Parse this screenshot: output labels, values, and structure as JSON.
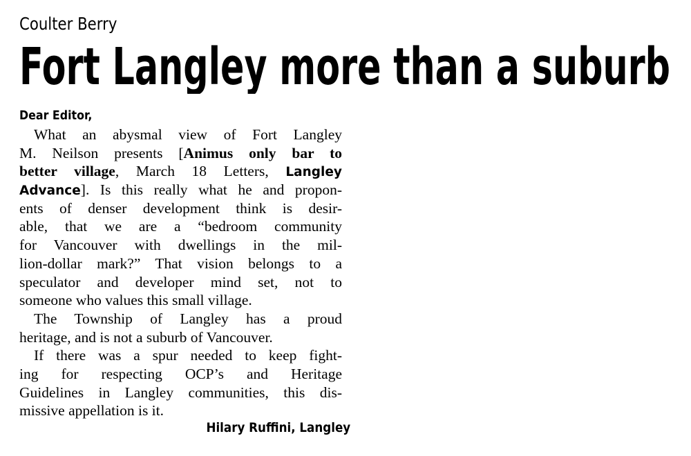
{
  "kicker": "Coulter Berry",
  "headline": "Fort Langley more than a suburb",
  "salutation": "Dear Editor,",
  "paragraphs": [
    {
      "indent": true,
      "lines": [
        [
          {
            "text": "What an abysmal view of Fort Langley"
          }
        ],
        [
          {
            "text": "M. Neilson presents ["
          },
          {
            "text": "Animus only bar to",
            "style": "bold"
          }
        ],
        [
          {
            "text": "better village",
            "style": "bold"
          },
          {
            "text": ", March 18 Letters, "
          },
          {
            "text": "Langley",
            "style": "sans-bold"
          }
        ],
        [
          {
            "text": "Advance",
            "style": "sans-bold"
          },
          {
            "text": "]. Is this really what he and propon-"
          }
        ],
        [
          {
            "text": "ents of denser development think is desir-"
          }
        ],
        [
          {
            "text": "able, that we are a “bedroom community"
          }
        ],
        [
          {
            "text": "for Vancouver with dwellings in the mil-"
          }
        ],
        [
          {
            "text": "lion-dollar mark?” That vision belongs to a"
          }
        ],
        [
          {
            "text": "speculator and developer mind set, not to"
          }
        ],
        [
          {
            "text": "someone who values this small village."
          }
        ]
      ]
    },
    {
      "indent": true,
      "lines": [
        [
          {
            "text": "The Township of Langley has a proud"
          }
        ],
        [
          {
            "text": "heritage, and is not a suburb of Vancouver."
          }
        ]
      ]
    },
    {
      "indent": true,
      "lines": [
        [
          {
            "text": "If there was a spur needed to keep fight-"
          }
        ],
        [
          {
            "text": "ing for respecting OCP’s and Heritage"
          }
        ],
        [
          {
            "text": "Guidelines in Langley communities, this dis-"
          }
        ],
        [
          {
            "text": "missive appellation is it."
          }
        ]
      ]
    }
  ],
  "signature": "Hilary Ruffini, Langley"
}
